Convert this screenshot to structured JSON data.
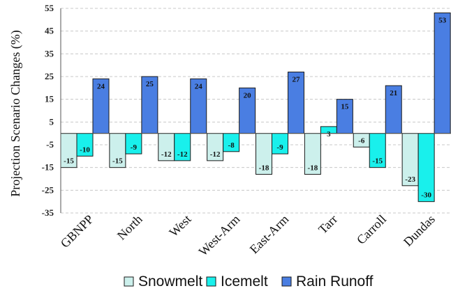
{
  "chart_data": {
    "type": "bar",
    "categories": [
      "GBNPP",
      "North",
      "West",
      "West-Arm",
      "East-Arm",
      "Tarr",
      "Carroll",
      "Dundas"
    ],
    "series": [
      {
        "name": "Snowmelt",
        "color": "#ccf0ec",
        "values": [
          -15,
          -15,
          -12,
          -12,
          -18,
          -18,
          -6,
          -23
        ]
      },
      {
        "name": "Icemelt",
        "color": "#19f0ec",
        "values": [
          -10,
          -9,
          -12,
          -8,
          -9,
          3,
          -15,
          -30
        ]
      },
      {
        "name": "Rain Runoff",
        "color": "#4a7ee2",
        "values": [
          24,
          25,
          24,
          20,
          27,
          15,
          21,
          53
        ]
      }
    ],
    "ylabel": "Projection Scenario Changes (%)",
    "ylim": [
      -35,
      55
    ],
    "yticks": [
      -35,
      -25,
      -15,
      -5,
      5,
      15,
      25,
      35,
      45,
      55
    ],
    "grid": true,
    "legend": "bottom"
  }
}
